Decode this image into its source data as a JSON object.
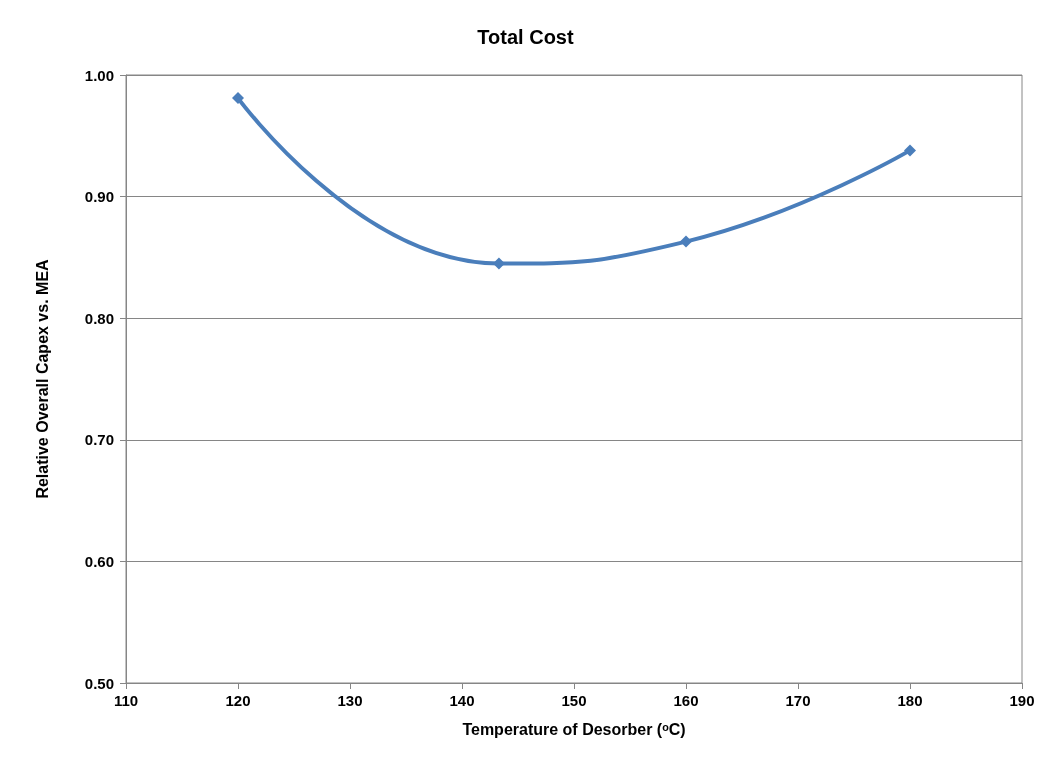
{
  "chart_data": {
    "type": "line",
    "title": "Total Cost",
    "xlabel": "Temperature of Desorber (ᵒC)",
    "ylabel": "Relative Overall Capex vs. MEA",
    "x": [
      120,
      143.3,
      160,
      180
    ],
    "series": [
      {
        "color": "#4a7ebb",
        "values": [
          0.981,
          0.845,
          0.863,
          0.938
        ]
      }
    ],
    "xlim": [
      110,
      190
    ],
    "xticks": [
      110,
      120,
      130,
      140,
      150,
      160,
      170,
      180,
      190
    ],
    "ylim": [
      0.5,
      1.0
    ],
    "yticks": [
      {
        "value": 0.5,
        "label": "0.50"
      },
      {
        "value": 0.6,
        "label": "0.60"
      },
      {
        "value": 0.7,
        "label": "0.70"
      },
      {
        "value": 0.8,
        "label": "0.80"
      },
      {
        "value": 0.9,
        "label": "0.90"
      },
      {
        "value": 1.0,
        "label": "1.00"
      }
    ],
    "grid": "y",
    "marker": "diamond",
    "line_style": "solid"
  }
}
